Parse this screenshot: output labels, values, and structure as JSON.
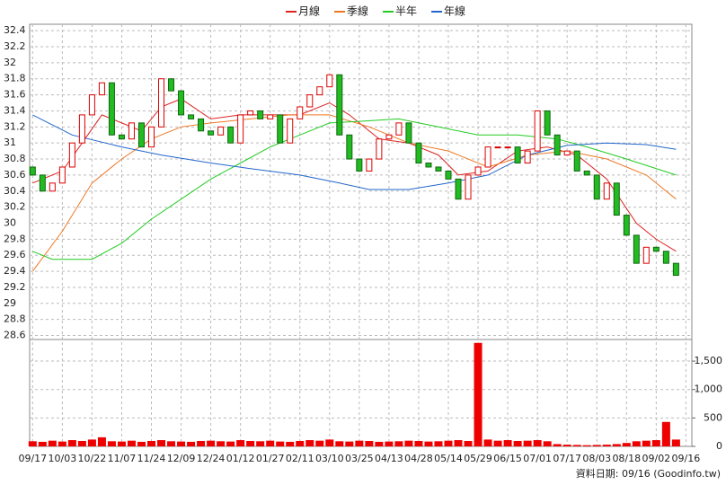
{
  "chart_data": {
    "type": "candlestick",
    "legend": [
      "月線",
      "季線",
      "半年",
      "年線"
    ],
    "source_label": "資料日期: 09/16  (Goodinfo.tw)",
    "xlim": [
      -0.3,
      66.6
    ],
    "xticks": [
      {
        "value": 0,
        "label": "09/17"
      },
      {
        "value": 3,
        "label": "10/03"
      },
      {
        "value": 6,
        "label": "10/22"
      },
      {
        "value": 9,
        "label": "11/07"
      },
      {
        "value": 12,
        "label": "11/24"
      },
      {
        "value": 15,
        "label": "12/09"
      },
      {
        "value": 18,
        "label": "12/24"
      },
      {
        "value": 21,
        "label": "01/12"
      },
      {
        "value": 24,
        "label": "01/27"
      },
      {
        "value": 27,
        "label": "02/11"
      },
      {
        "value": 30,
        "label": "03/10"
      },
      {
        "value": 33,
        "label": "03/25"
      },
      {
        "value": 36,
        "label": "04/13"
      },
      {
        "value": 39,
        "label": "04/28"
      },
      {
        "value": 42,
        "label": "05/14"
      },
      {
        "value": 45,
        "label": "05/29"
      },
      {
        "value": 48,
        "label": "06/15"
      },
      {
        "value": 51,
        "label": "07/01"
      },
      {
        "value": 54,
        "label": "07/17"
      },
      {
        "value": 57,
        "label": "08/03"
      },
      {
        "value": 60,
        "label": "08/18"
      },
      {
        "value": 63,
        "label": "09/02"
      },
      {
        "value": 66,
        "label": "09/16"
      }
    ],
    "ylim": [
      28.55,
      32.48
    ],
    "yticks": [
      28.6,
      28.8,
      29,
      29.2,
      29.4,
      29.6,
      29.8,
      30,
      30.2,
      30.4,
      30.6,
      30.8,
      31,
      31.2,
      31.4,
      31.6,
      31.8,
      32,
      32.2,
      32.4
    ],
    "y2lim": [
      0,
      1880
    ],
    "y2ticks": [
      0,
      500,
      {
        "value": 1000,
        "label": "1,000"
      },
      {
        "value": 1500,
        "label": "1,500"
      }
    ],
    "grid": true,
    "up_color": "#dd0000",
    "down_color": "#22bb22",
    "volume_color": "#ee0000",
    "open": [
      30.7,
      30.6,
      30.4,
      30.5,
      30.7,
      31.0,
      31.35,
      31.6,
      31.75,
      31.1,
      31.05,
      31.25,
      30.95,
      31.2,
      31.8,
      31.65,
      31.35,
      31.3,
      31.15,
      31.1,
      31.2,
      31.0,
      31.35,
      31.4,
      31.3,
      31.35,
      31.0,
      31.3,
      31.45,
      31.6,
      31.7,
      31.85,
      31.1,
      30.8,
      30.65,
      30.8,
      31.05,
      31.1,
      31.25,
      31.0,
      30.75,
      30.7,
      30.65,
      30.55,
      30.3,
      30.6,
      30.7,
      30.95,
      30.95,
      30.95,
      30.75,
      30.9,
      31.4,
      31.1,
      30.85,
      30.9,
      30.65,
      30.6,
      30.3,
      30.5,
      30.1,
      29.85,
      29.5,
      29.7,
      29.65,
      29.5
    ],
    "close": [
      30.6,
      30.4,
      30.5,
      30.7,
      31.0,
      31.35,
      31.6,
      31.75,
      31.1,
      31.05,
      31.25,
      30.95,
      31.2,
      31.8,
      31.65,
      31.35,
      31.3,
      31.15,
      31.1,
      31.2,
      31.0,
      31.35,
      31.4,
      31.3,
      31.35,
      31.0,
      31.3,
      31.45,
      31.6,
      31.7,
      31.85,
      31.1,
      30.8,
      30.65,
      30.8,
      31.05,
      31.1,
      31.25,
      31.0,
      30.75,
      30.7,
      30.65,
      30.55,
      30.3,
      30.6,
      30.7,
      30.95,
      30.95,
      30.95,
      30.75,
      30.9,
      31.4,
      31.1,
      30.85,
      30.9,
      30.65,
      30.6,
      30.3,
      30.5,
      30.1,
      29.85,
      29.5,
      29.7,
      29.65,
      29.5,
      29.35
    ],
    "volume": [
      90,
      80,
      100,
      85,
      110,
      95,
      120,
      160,
      90,
      85,
      100,
      80,
      95,
      110,
      90,
      85,
      80,
      95,
      100,
      90,
      85,
      110,
      95,
      90,
      100,
      85,
      80,
      95,
      110,
      100,
      120,
      90,
      85,
      100,
      95,
      80,
      85,
      90,
      100,
      95,
      85,
      90,
      100,
      110,
      95,
      1820,
      120,
      100,
      110,
      95,
      100,
      110,
      90,
      40,
      30,
      25,
      20,
      25,
      30,
      40,
      60,
      90,
      100,
      110,
      430,
      120
    ],
    "series": [
      {
        "name": "月線",
        "color": "#dd2222",
        "x": [
          0,
          3,
          5,
          7,
          9,
          11,
          13,
          15,
          18,
          21,
          24,
          27,
          30,
          32,
          35,
          38,
          41,
          43,
          46,
          49,
          52,
          55,
          58,
          61,
          63,
          65
        ],
        "values": [
          30.5,
          30.65,
          31.0,
          31.35,
          31.25,
          31.15,
          31.45,
          31.55,
          31.3,
          31.35,
          31.35,
          31.35,
          31.5,
          31.35,
          31.05,
          31.0,
          30.85,
          30.6,
          30.65,
          30.9,
          30.95,
          30.85,
          30.55,
          30.0,
          29.8,
          29.65
        ]
      },
      {
        "name": "季線",
        "color": "#ee7722",
        "x": [
          0,
          3,
          6,
          9,
          12,
          15,
          18,
          22,
          26,
          30,
          34,
          38,
          42,
          46,
          50,
          54,
          58,
          62,
          65
        ],
        "values": [
          29.4,
          29.9,
          30.5,
          30.8,
          31.05,
          31.2,
          31.25,
          31.3,
          31.35,
          31.35,
          31.2,
          31.0,
          30.9,
          30.7,
          30.85,
          30.9,
          30.8,
          30.6,
          30.3
        ]
      },
      {
        "name": "半年",
        "color": "#22cc22",
        "x": [
          0,
          2,
          6,
          9,
          12,
          15,
          18,
          21,
          24,
          27,
          30,
          33,
          37,
          41,
          45,
          49,
          53,
          56,
          60,
          65
        ],
        "values": [
          29.65,
          29.55,
          29.55,
          29.75,
          30.05,
          30.3,
          30.55,
          30.75,
          30.95,
          31.1,
          31.25,
          31.27,
          31.3,
          31.2,
          31.1,
          31.1,
          31.05,
          30.95,
          30.8,
          30.6
        ]
      },
      {
        "name": "年線",
        "color": "#2266cc",
        "x": [
          0,
          4,
          9,
          13,
          18,
          22,
          27,
          31,
          34,
          38,
          42,
          46,
          50,
          54,
          58,
          62,
          65
        ],
        "values": [
          31.35,
          31.1,
          30.95,
          30.85,
          30.75,
          30.68,
          30.6,
          30.5,
          30.42,
          30.42,
          30.5,
          30.6,
          30.85,
          30.97,
          31.0,
          30.98,
          30.92
        ]
      }
    ]
  }
}
